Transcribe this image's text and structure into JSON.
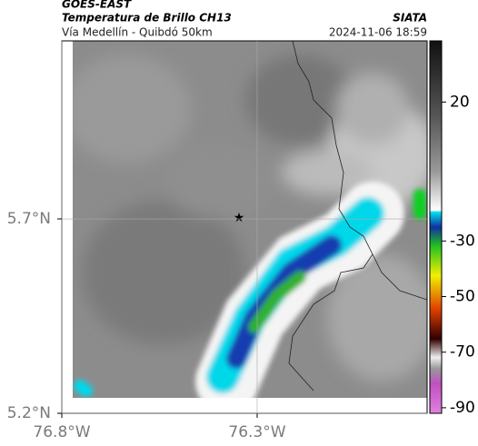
{
  "header": {
    "source": "GOES-EAST",
    "title": "Temperatura de Brillo CH13",
    "subtitle": "Vía Medellín - Quibdó 50km",
    "org": "SIATA",
    "timestamp": "2024-11-06 18:59"
  },
  "map": {
    "xlim": [
      -76.8,
      -75.865
    ],
    "ylim": [
      5.2,
      6.158
    ],
    "xticks": [
      {
        "value": -76.8,
        "label": "76.8°W"
      },
      {
        "value": -76.3,
        "label": "76.3°W"
      }
    ],
    "yticks": [
      {
        "value": 5.2,
        "label": "5.2°N"
      },
      {
        "value": 5.7,
        "label": "5.7°N"
      }
    ]
  },
  "colorbar": {
    "lim": [
      -92,
      42
    ],
    "ticks": [
      20,
      -30,
      -50,
      -70,
      -90
    ]
  }
}
